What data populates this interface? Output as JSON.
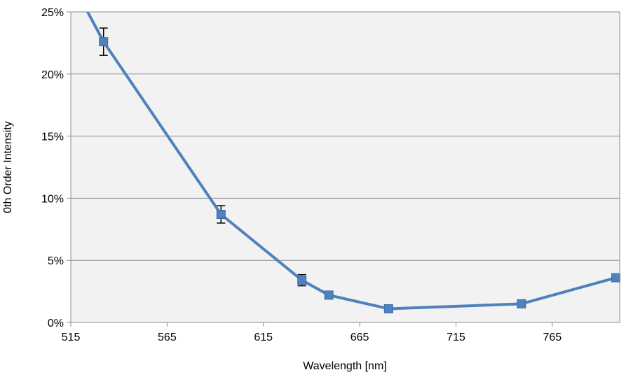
{
  "chart_data": {
    "type": "line",
    "title": "",
    "xlabel": "Wavelength [nm]",
    "ylabel": "0th Order Intensity",
    "xlim": [
      515,
      800
    ],
    "ylim": [
      0,
      25
    ],
    "x_ticks": [
      515,
      565,
      615,
      665,
      715,
      765
    ],
    "y_ticks": [
      0,
      5,
      10,
      15,
      20,
      25
    ],
    "y_tick_labels": [
      "0%",
      "5%",
      "10%",
      "15%",
      "20%",
      "25%"
    ],
    "grid": true,
    "plot_background": "#f2f2f2",
    "series_color": "#4f81bd",
    "line_start": {
      "x": 522,
      "y": 25.5
    },
    "series": [
      {
        "x": [
          532,
          593,
          635,
          649,
          680,
          749,
          798
        ],
        "y": [
          22.6,
          8.7,
          3.4,
          2.2,
          1.1,
          1.5,
          3.6
        ],
        "error": [
          1.1,
          0.7,
          0.45,
          0,
          0,
          0,
          0
        ]
      }
    ]
  }
}
